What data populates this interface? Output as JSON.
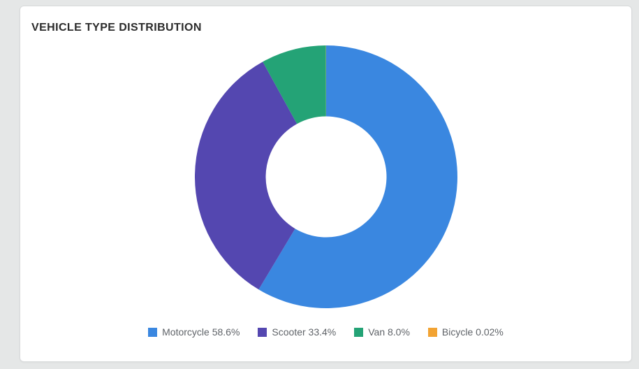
{
  "card": {
    "title": "VEHICLE TYPE DISTRIBUTION"
  },
  "chart_data": {
    "type": "pie",
    "subtype": "donut",
    "title": "VEHICLE TYPE DISTRIBUTION",
    "categories": [
      "Motorcycle",
      "Scooter",
      "Van",
      "Bicycle"
    ],
    "values": [
      58.6,
      33.4,
      8.0,
      0.02
    ],
    "unit": "%",
    "colors": [
      "#3a87e0",
      "#5447b0",
      "#24a376",
      "#f2a333"
    ],
    "legend": [
      {
        "label": "Motorcycle 58.6%",
        "color": "#3a87e0"
      },
      {
        "label": "Scooter 33.4%",
        "color": "#5447b0"
      },
      {
        "label": "Van 8.0%",
        "color": "#24a376"
      },
      {
        "label": "Bicycle 0.02%",
        "color": "#f2a333"
      }
    ],
    "legend_position": "bottom",
    "start_angle_deg": 0,
    "direction": "clockwise",
    "inner_radius_ratio": 0.46,
    "hole_color": "#ffffff"
  }
}
